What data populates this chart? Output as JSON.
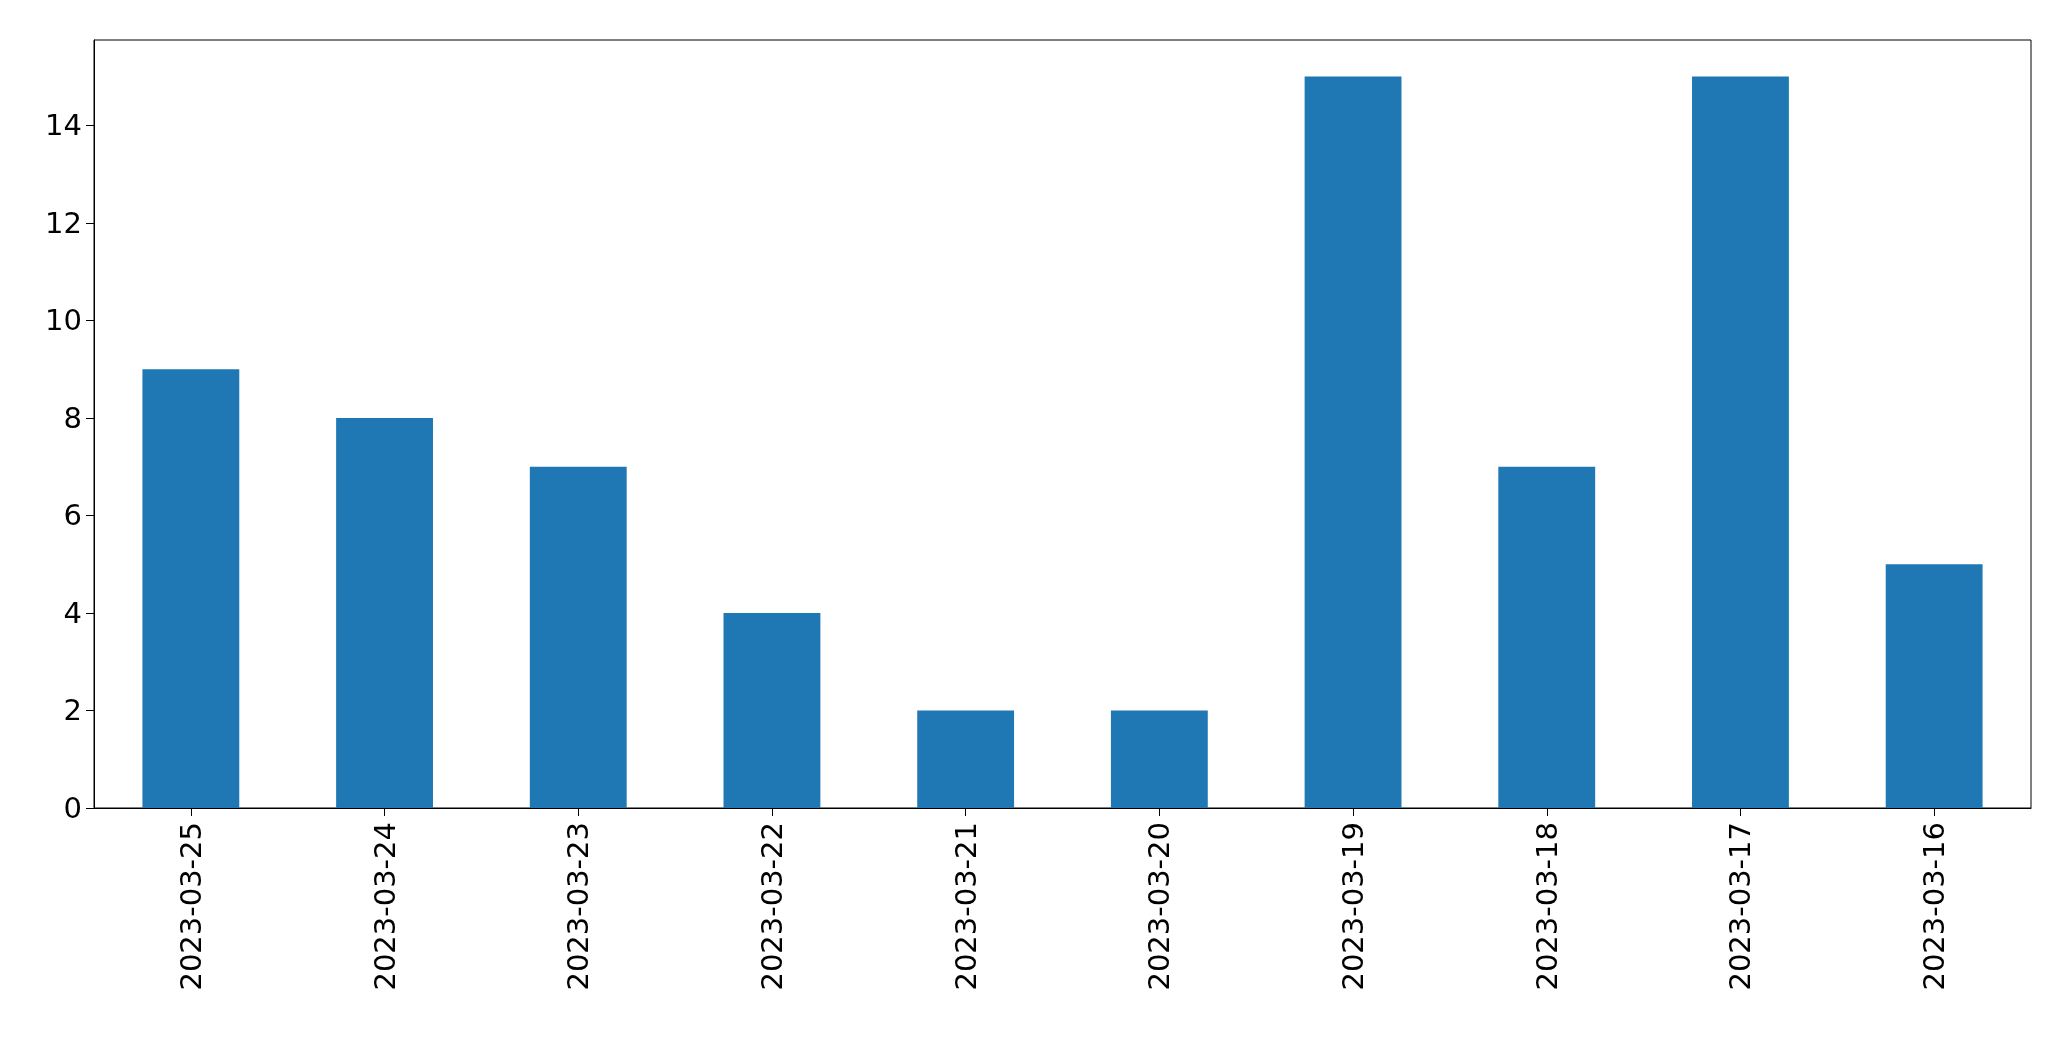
{
  "chart_data": {
    "type": "bar",
    "categories": [
      "2023-03-25",
      "2023-03-24",
      "2023-03-23",
      "2023-03-22",
      "2023-03-21",
      "2023-03-20",
      "2023-03-19",
      "2023-03-18",
      "2023-03-17",
      "2023-03-16"
    ],
    "values": [
      9,
      8,
      7,
      4,
      2,
      2,
      15,
      7,
      15,
      5
    ],
    "color": "#1f77b4",
    "ylim": [
      0,
      15.75
    ],
    "yticks": [
      0,
      2,
      4,
      6,
      8,
      10,
      12,
      14
    ],
    "grid": false
  }
}
